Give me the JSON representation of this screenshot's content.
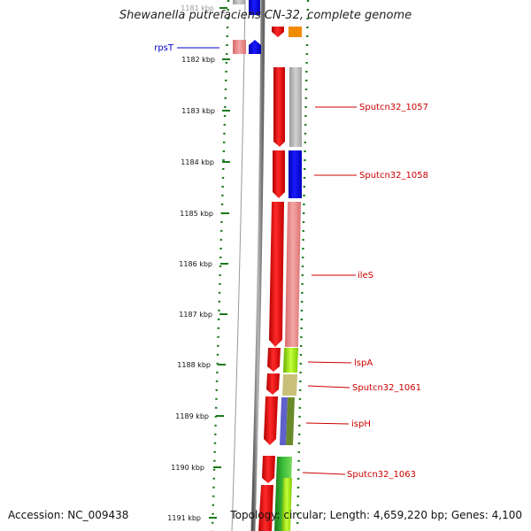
{
  "title": "Shewanella putrefaciens CN-32, complete genome",
  "footer": {
    "accession": "Accession: NC_009438",
    "topology": "Topology: circular; Length: 4,659,220 bp; Genes: 4,100"
  },
  "ticks": [
    "1181 kbp",
    "1182 kbp",
    "1183 kbp",
    "1184 kbp",
    "1185 kbp",
    "1186 kbp",
    "1187 kbp",
    "1188 kbp",
    "1189 kbp",
    "1190 kbp",
    "1191 kbp"
  ],
  "gene_labels": [
    {
      "name": "rpsT",
      "color": "#0000cc"
    },
    {
      "name": "Sputcn32_1057",
      "color": "#cc0000"
    },
    {
      "name": "Sputcn32_1058",
      "color": "#cc0000"
    },
    {
      "name": "ileS",
      "color": "#cc0000"
    },
    {
      "name": "lspA",
      "color": "#cc0000"
    },
    {
      "name": "Sputcn32_1061",
      "color": "#cc0000"
    },
    {
      "name": "ispH",
      "color": "#cc0000"
    },
    {
      "name": "Sputcn32_1063",
      "color": "#cc0000"
    }
  ],
  "colors": {
    "forward_strand": "#ee0000",
    "backbone": "#808080",
    "tick_marks": "#1a7a1a",
    "reverse_label": "#0000cc"
  }
}
